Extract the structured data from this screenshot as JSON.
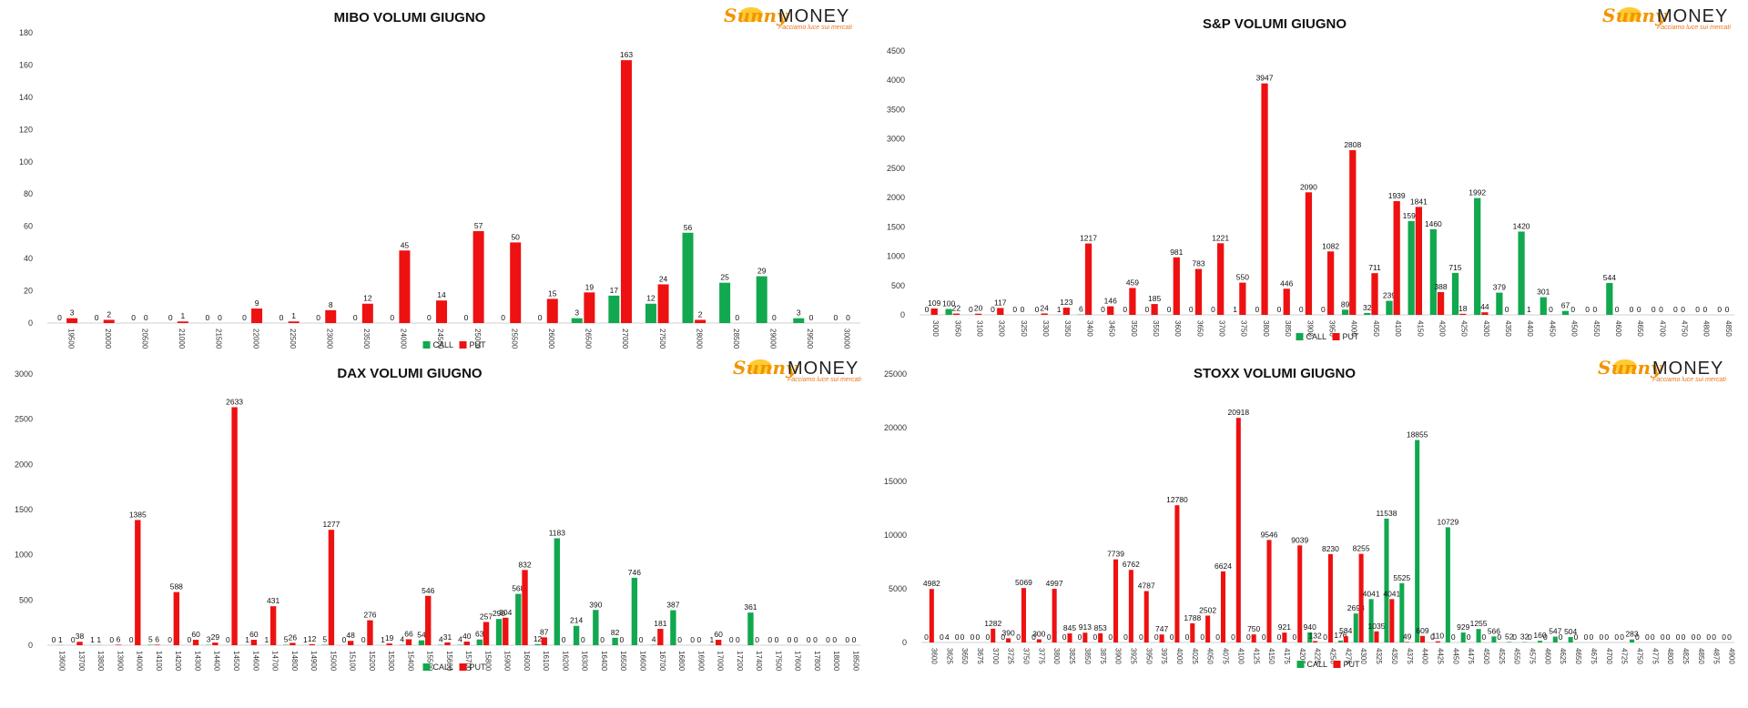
{
  "colors": {
    "call": "#11a84f",
    "put": "#ee1111",
    "axis": "#d0d0d0",
    "logo_orange": "#f29400",
    "logo_yellow": "#ffc20e"
  },
  "logo": {
    "sunny": "Sunny",
    "money": "MONEY",
    "tagline": "Facciamo luce sui mercati"
  },
  "legend": {
    "call": "CALL",
    "put": "PUT"
  },
  "chart_data": [
    {
      "type": "bar",
      "title": "MIBO VOLUMI GIUGNO",
      "ylim": [
        0,
        180
      ],
      "yticks": [
        0,
        20,
        40,
        60,
        80,
        100,
        120,
        140,
        160,
        180
      ],
      "categories": [
        "19500",
        "20000",
        "20500",
        "21000",
        "21500",
        "22000",
        "22500",
        "23000",
        "23500",
        "24000",
        "24500",
        "25000",
        "25500",
        "26000",
        "26500",
        "27000",
        "27500",
        "28000",
        "28500",
        "29000",
        "29500",
        "30000"
      ],
      "series": [
        {
          "name": "CALL",
          "values": [
            0,
            0,
            0,
            0,
            0,
            0,
            0,
            0,
            0,
            0,
            0,
            0,
            0,
            0,
            3,
            17,
            12,
            56,
            25,
            29,
            3,
            0
          ]
        },
        {
          "name": "PUT",
          "values": [
            3,
            2,
            0,
            1,
            0,
            9,
            1,
            8,
            12,
            45,
            14,
            57,
            50,
            15,
            19,
            163,
            24,
            2,
            0,
            0,
            0,
            0
          ]
        }
      ],
      "legend_position": "bottom",
      "grid": false
    },
    {
      "type": "bar",
      "title": "S&P VOLUMI GIUGNO",
      "ylim": [
        0,
        4500
      ],
      "yticks": [
        0,
        500,
        1000,
        1500,
        2000,
        2500,
        3000,
        3500,
        4000,
        4500
      ],
      "categories": [
        "3000",
        "3050",
        "3100",
        "3200",
        "3250",
        "3300",
        "3350",
        "3400",
        "3450",
        "3500",
        "3550",
        "3600",
        "3650",
        "3700",
        "3750",
        "3800",
        "3850",
        "3900",
        "3950",
        "4000",
        "4050",
        "4100",
        "4150",
        "4200",
        "4250",
        "4300",
        "4350",
        "4400",
        "4450",
        "4500",
        "4550",
        "4600",
        "4650",
        "4700",
        "4750",
        "4800",
        "4850"
      ],
      "series": [
        {
          "name": "CALL",
          "values": [
            0,
            100,
            0,
            0,
            0,
            0,
            1,
            6,
            0,
            0,
            0,
            0,
            0,
            0,
            1,
            0,
            0,
            0,
            0,
            89,
            32,
            239,
            1599,
            1460,
            715,
            1992,
            379,
            1420,
            301,
            67,
            0,
            544,
            0,
            0,
            0,
            0,
            0
          ]
        },
        {
          "name": "PUT",
          "values": [
            109,
            22,
            20,
            117,
            0,
            24,
            123,
            1217,
            146,
            459,
            185,
            981,
            783,
            1221,
            550,
            3947,
            446,
            2090,
            1082,
            2808,
            711,
            1939,
            1841,
            388,
            18,
            44,
            0,
            1,
            0,
            0,
            0,
            0,
            0,
            0,
            0,
            0,
            0
          ]
        }
      ],
      "legend_position": "bottom",
      "grid": false
    },
    {
      "type": "bar",
      "title": "DAX VOLUMI GIUGNO",
      "ylim": [
        0,
        3000
      ],
      "yticks": [
        0,
        500,
        1000,
        1500,
        2000,
        2500,
        3000
      ],
      "categories": [
        "13600",
        "13700",
        "13800",
        "13900",
        "14000",
        "14100",
        "14200",
        "14300",
        "14400",
        "14500",
        "14600",
        "14700",
        "14800",
        "14900",
        "15000",
        "15100",
        "15200",
        "15300",
        "15400",
        "15500",
        "15600",
        "15700",
        "15800",
        "15900",
        "16000",
        "16100",
        "16200",
        "16300",
        "16400",
        "16500",
        "16600",
        "16700",
        "16800",
        "16900",
        "17000",
        "17200",
        "17400",
        "17500",
        "17600",
        "17800",
        "18000",
        "18500"
      ],
      "series": [
        {
          "name": "CALL",
          "values": [
            0,
            0,
            1,
            0,
            0,
            5,
            0,
            0,
            3,
            0,
            1,
            1,
            5,
            1,
            5,
            0,
            0,
            1,
            4,
            54,
            4,
            4,
            63,
            290,
            568,
            12,
            1183,
            214,
            390,
            82,
            746,
            4,
            387,
            0,
            1,
            0,
            361,
            0,
            0,
            0,
            0,
            0
          ]
        },
        {
          "name": "PUT",
          "values": [
            1,
            38,
            1,
            6,
            1385,
            6,
            588,
            60,
            29,
            2633,
            60,
            431,
            26,
            12,
            1277,
            48,
            276,
            19,
            66,
            546,
            31,
            40,
            257,
            304,
            832,
            87,
            0,
            0,
            0,
            0,
            0,
            181,
            0,
            0,
            60,
            0,
            0,
            0,
            0,
            0,
            0,
            0
          ]
        }
      ],
      "legend_position": "bottom",
      "grid": false
    },
    {
      "type": "bar",
      "title": "STOXX VOLUMI GIUGNO",
      "ylim": [
        0,
        25000
      ],
      "yticks": [
        0,
        5000,
        10000,
        15000,
        20000,
        25000
      ],
      "categories": [
        "3600",
        "3625",
        "3650",
        "3675",
        "3700",
        "3725",
        "3750",
        "3775",
        "3800",
        "3825",
        "3850",
        "3875",
        "3900",
        "3925",
        "3950",
        "3975",
        "4000",
        "4025",
        "4050",
        "4075",
        "4100",
        "4125",
        "4150",
        "4175",
        "4200",
        "4225",
        "4250",
        "4275",
        "4300",
        "4325",
        "4350",
        "4375",
        "4400",
        "4425",
        "4450",
        "4475",
        "4500",
        "4525",
        "4550",
        "4575",
        "4600",
        "4625",
        "4650",
        "4675",
        "4700",
        "4725",
        "4750",
        "4775",
        "4800",
        "4825",
        "4850",
        "4875",
        "4900"
      ],
      "series": [
        {
          "name": "CALL",
          "values": [
            0,
            0,
            0,
            0,
            0,
            0,
            0,
            0,
            0,
            0,
            0,
            0,
            0,
            0,
            0,
            0,
            0,
            0,
            0,
            0,
            0,
            0,
            0,
            0,
            0,
            940,
            0,
            176,
            2698,
            4041,
            11538,
            5525,
            18855,
            0,
            10729,
            929,
            1255,
            566,
            52,
            32,
            160,
            547,
            504,
            0,
            0,
            0,
            283,
            0,
            0,
            0,
            0,
            0,
            0
          ]
        },
        {
          "name": "PUT",
          "values": [
            4982,
            4,
            0,
            0,
            1282,
            390,
            5069,
            300,
            4997,
            845,
            913,
            853,
            7739,
            6762,
            4787,
            747,
            12780,
            1788,
            2502,
            6624,
            20918,
            750,
            9546,
            921,
            9039,
            132,
            8230,
            584,
            8255,
            1035,
            4041,
            49,
            609,
            110,
            0,
            0,
            0,
            0,
            0,
            0,
            0,
            0,
            0,
            0,
            0,
            0,
            0,
            0,
            0,
            0,
            0,
            0,
            0
          ]
        }
      ],
      "legend_position": "bottom",
      "grid": false
    }
  ]
}
